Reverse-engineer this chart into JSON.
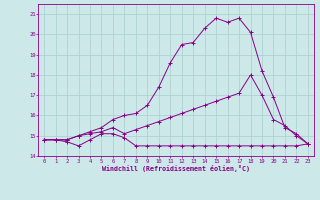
{
  "xlabel": "Windchill (Refroidissement éolien,°C)",
  "background_color": "#cce8e8",
  "line_color": "#880088",
  "grid_color": "#aacece",
  "xlim": [
    -0.5,
    23.5
  ],
  "ylim": [
    14.0,
    21.5
  ],
  "yticks": [
    14,
    15,
    16,
    17,
    18,
    19,
    20,
    21
  ],
  "xticks": [
    0,
    1,
    2,
    3,
    4,
    5,
    6,
    7,
    8,
    9,
    10,
    11,
    12,
    13,
    14,
    15,
    16,
    17,
    18,
    19,
    20,
    21,
    22,
    23
  ],
  "line1_x": [
    0,
    1,
    2,
    3,
    4,
    5,
    6,
    7,
    8,
    9,
    10,
    11,
    12,
    13,
    14,
    15,
    16,
    17,
    18,
    19,
    20,
    21,
    22,
    23
  ],
  "line1_y": [
    14.8,
    14.8,
    14.7,
    14.5,
    14.8,
    15.1,
    15.1,
    14.9,
    14.5,
    14.5,
    14.5,
    14.5,
    14.5,
    14.5,
    14.5,
    14.5,
    14.5,
    14.5,
    14.5,
    14.5,
    14.5,
    14.5,
    14.5,
    14.6
  ],
  "line2_x": [
    0,
    1,
    2,
    3,
    4,
    5,
    6,
    7,
    8,
    9,
    10,
    11,
    12,
    13,
    14,
    15,
    16,
    17,
    18,
    19,
    20,
    21,
    22,
    23
  ],
  "line2_y": [
    14.8,
    14.8,
    14.8,
    15.0,
    15.1,
    15.2,
    15.4,
    15.1,
    15.3,
    15.5,
    15.7,
    15.9,
    16.1,
    16.3,
    16.5,
    16.7,
    16.9,
    17.1,
    18.0,
    17.0,
    15.8,
    15.5,
    15.0,
    14.6
  ],
  "line3_x": [
    0,
    1,
    2,
    3,
    4,
    5,
    6,
    7,
    8,
    9,
    10,
    11,
    12,
    13,
    14,
    15,
    16,
    17,
    18,
    19,
    20,
    21,
    22,
    23
  ],
  "line3_y": [
    14.8,
    14.8,
    14.8,
    15.0,
    15.2,
    15.4,
    15.8,
    16.0,
    16.1,
    16.5,
    17.4,
    18.6,
    19.5,
    19.6,
    20.3,
    20.8,
    20.6,
    20.8,
    20.1,
    18.2,
    16.9,
    15.4,
    15.1,
    14.6
  ]
}
